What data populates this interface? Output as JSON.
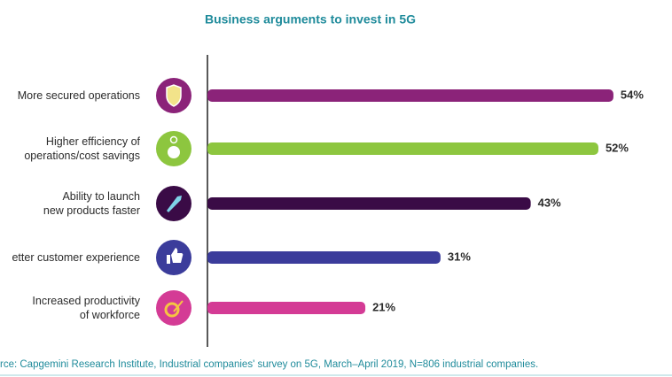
{
  "chart_data": {
    "type": "bar",
    "orientation": "horizontal",
    "title": "Business arguments to invest in 5G",
    "categories": [
      "More secured operations",
      "Higher efficiency of\noperations/cost savings",
      "Ability to launch\nnew products faster",
      "etter customer experience",
      "Increased productivity\nof workforce"
    ],
    "values": [
      54,
      52,
      43,
      31,
      21
    ],
    "value_labels": [
      "54%",
      "52%",
      "43%",
      "31%",
      "21%"
    ],
    "colors": [
      "#8b2379",
      "#8dc63f",
      "#3a0b46",
      "#3b3c9b",
      "#d43b95"
    ],
    "xlim": [
      0,
      60
    ],
    "source": "rce: Capgemini Research Institute, Industrial companies' survey on 5G, March–April 2019, N=806 industrial companies."
  }
}
